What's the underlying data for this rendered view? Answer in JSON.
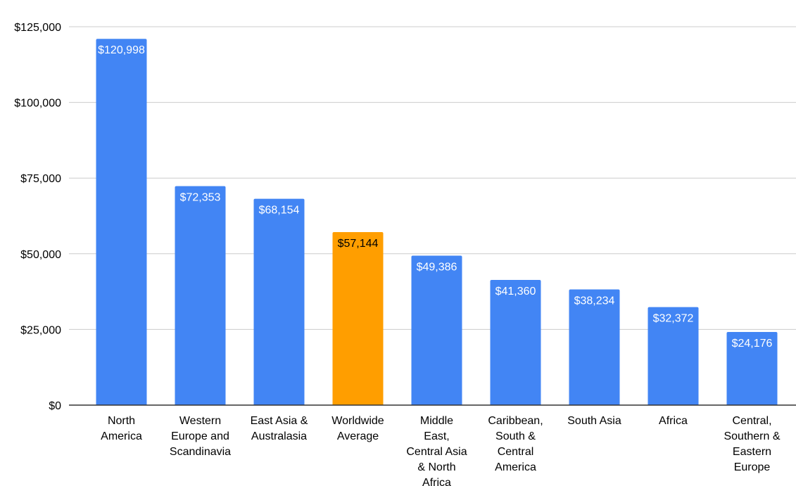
{
  "chart_data": {
    "type": "bar",
    "title": "",
    "xlabel": "",
    "ylabel": "",
    "ylim": [
      0,
      125000
    ],
    "yticks": [
      0,
      25000,
      50000,
      75000,
      100000,
      125000
    ],
    "ytick_labels": [
      "$0",
      "$25,000",
      "$50,000",
      "$75,000",
      "$100,000",
      "$125,000"
    ],
    "grid": true,
    "legend": "none",
    "categories": [
      [
        "North",
        "America"
      ],
      [
        "Western",
        "Europe and",
        "Scandinavia"
      ],
      [
        "East Asia &",
        "Australasia"
      ],
      [
        "Worldwide",
        "Average"
      ],
      [
        "Middle",
        "East,",
        "Central Asia",
        "& North",
        "Africa"
      ],
      [
        "Caribbean,",
        "South &",
        "Central",
        "America"
      ],
      [
        "South Asia"
      ],
      [
        "Africa"
      ],
      [
        "Central,",
        "Southern &",
        "Eastern",
        "Europe"
      ]
    ],
    "values": [
      120998,
      72353,
      68154,
      57144,
      49386,
      41360,
      38234,
      32372,
      24176
    ],
    "value_labels": [
      "$120,998",
      "$72,353",
      "$68,154",
      "$57,144",
      "$49,386",
      "$41,360",
      "$38,234",
      "$32,372",
      "$24,176"
    ],
    "colors": {
      "default_bar": "#4285f4",
      "highlight_bar": "#ff9e00",
      "label_inside": "#ffffff",
      "label_inside_highlight": "#000000",
      "label_above": "#4285f4",
      "grid": "#cccccc",
      "axis": "#333333"
    },
    "highlight_index": 3
  }
}
